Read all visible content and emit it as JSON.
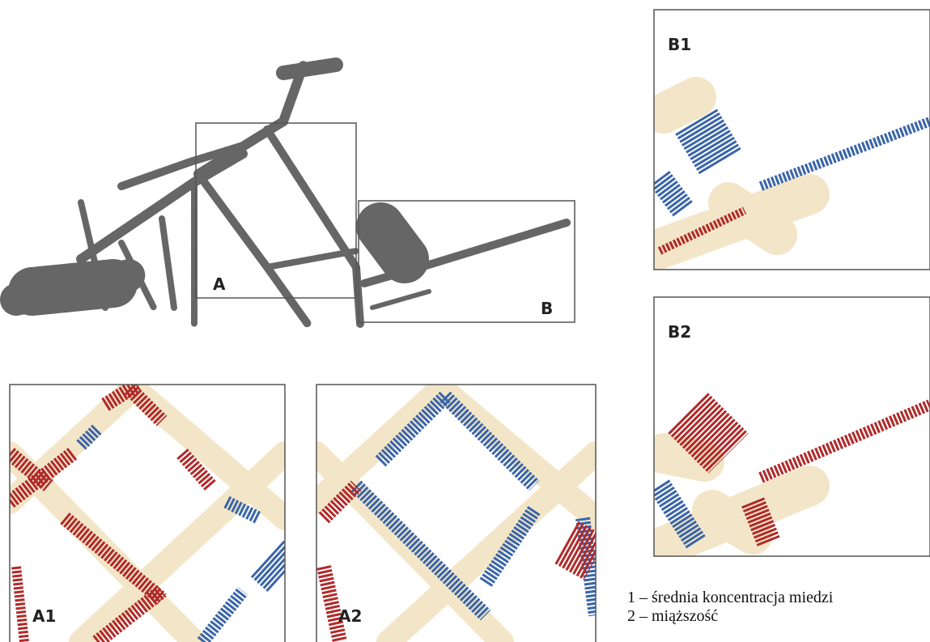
{
  "overview": {
    "labels": [
      "A",
      "B"
    ]
  },
  "panels": [
    {
      "label": "A1"
    },
    {
      "label": "A2"
    },
    {
      "label": "B1"
    },
    {
      "label": "B2"
    }
  ],
  "legend": [
    "1 – średnia koncentracja miedzi",
    "2 – miąższość"
  ]
}
